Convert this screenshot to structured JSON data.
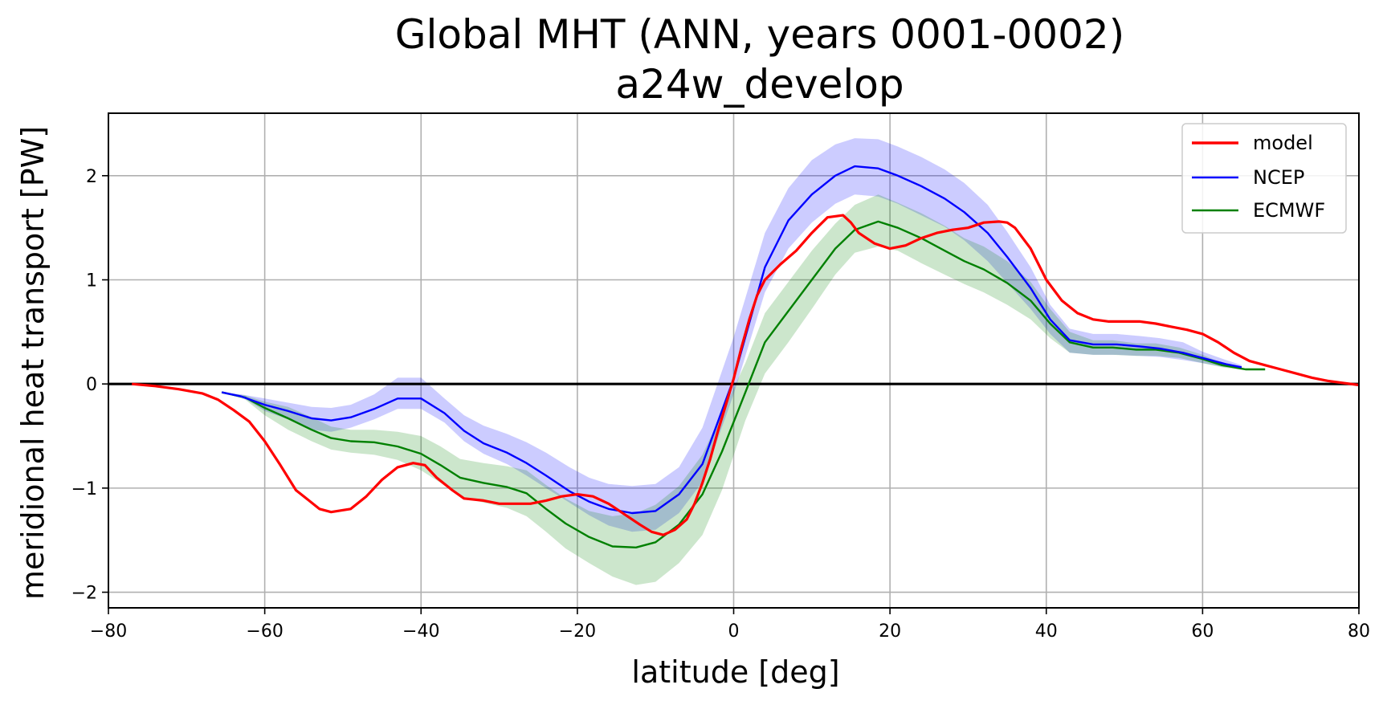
{
  "chart_data": {
    "type": "line",
    "title": "Global MHT (ANN, years 0001-0002)",
    "subtitle": "a24w_develop",
    "xlabel": "latitude [deg]",
    "ylabel": "meridional heat transport [PW]",
    "xlim": [
      -80,
      80
    ],
    "ylim": [
      -2.15,
      2.6
    ],
    "xticks": [
      -80,
      -60,
      -40,
      -20,
      0,
      20,
      40,
      60,
      80
    ],
    "yticks": [
      -2,
      -1,
      0,
      1,
      2
    ],
    "xtick_labels": [
      "−80",
      "−60",
      "−40",
      "−20",
      "0",
      "20",
      "40",
      "60",
      "80"
    ],
    "ytick_labels": [
      "−2",
      "−1",
      "0",
      "1",
      "2"
    ],
    "grid": true,
    "legend_position": "top-right",
    "zero_line": true,
    "series": [
      {
        "name": "model",
        "color": "#ff0000",
        "x": [
          -77,
          -74,
          -71,
          -68,
          -66,
          -64,
          -62,
          -60,
          -58,
          -56,
          -55,
          -53,
          -51.5,
          -49,
          -47,
          -45,
          -43,
          -41,
          -39.5,
          -38,
          -36,
          -34.5,
          -32,
          -30,
          -28,
          -26,
          -24,
          -22,
          -20,
          -18,
          -16,
          -14,
          -12,
          -10.5,
          -9,
          -7.5,
          -6,
          -5,
          -4,
          -3,
          -2,
          -1,
          0,
          1,
          2,
          3,
          4,
          6,
          8,
          10,
          12,
          14,
          15,
          16,
          18,
          20,
          22,
          24,
          26,
          28,
          30,
          32,
          34,
          35,
          36,
          38,
          40,
          42,
          44,
          46,
          48,
          50,
          52,
          54,
          56,
          58,
          60,
          62,
          64,
          66,
          68,
          70,
          72,
          74,
          76,
          78,
          80
        ],
        "y": [
          0,
          -0.02,
          -0.05,
          -0.09,
          -0.15,
          -0.25,
          -0.36,
          -0.55,
          -0.78,
          -1.02,
          -1.08,
          -1.2,
          -1.23,
          -1.2,
          -1.08,
          -0.92,
          -0.8,
          -0.76,
          -0.78,
          -0.9,
          -1.02,
          -1.1,
          -1.12,
          -1.15,
          -1.15,
          -1.15,
          -1.12,
          -1.08,
          -1.06,
          -1.08,
          -1.15,
          -1.25,
          -1.35,
          -1.42,
          -1.45,
          -1.4,
          -1.3,
          -1.15,
          -0.95,
          -0.72,
          -0.45,
          -0.2,
          0.05,
          0.35,
          0.62,
          0.85,
          1.0,
          1.15,
          1.28,
          1.45,
          1.6,
          1.62,
          1.55,
          1.45,
          1.35,
          1.3,
          1.33,
          1.4,
          1.45,
          1.48,
          1.5,
          1.55,
          1.56,
          1.55,
          1.5,
          1.3,
          1.0,
          0.8,
          0.68,
          0.62,
          0.6,
          0.6,
          0.6,
          0.58,
          0.55,
          0.52,
          0.48,
          0.4,
          0.3,
          0.22,
          0.18,
          0.14,
          0.1,
          0.06,
          0.03,
          0.01,
          -0.01
        ]
      },
      {
        "name": "NCEP",
        "color": "#0000ff",
        "x": [
          -65.5,
          -63,
          -60,
          -57,
          -54,
          -51.5,
          -49,
          -46,
          -43,
          -40,
          -37,
          -34.5,
          -32,
          -29,
          -26.5,
          -24,
          -21,
          -18.5,
          -16,
          -13,
          -10,
          -7,
          -4,
          0,
          4,
          7,
          10,
          13,
          15.5,
          18.5,
          21,
          24,
          27,
          29.5,
          32.5,
          35,
          38,
          40.5,
          43,
          46,
          49,
          52,
          54.5,
          57.5,
          60,
          63,
          65
        ],
        "y": [
          -0.08,
          -0.12,
          -0.2,
          -0.26,
          -0.33,
          -0.35,
          -0.32,
          -0.24,
          -0.14,
          -0.14,
          -0.28,
          -0.45,
          -0.57,
          -0.66,
          -0.76,
          -0.88,
          -1.03,
          -1.13,
          -1.2,
          -1.24,
          -1.22,
          -1.06,
          -0.77,
          0.05,
          1.12,
          1.57,
          1.82,
          2.0,
          2.09,
          2.07,
          2.0,
          1.9,
          1.78,
          1.65,
          1.45,
          1.22,
          0.92,
          0.62,
          0.42,
          0.38,
          0.38,
          0.36,
          0.34,
          0.3,
          0.25,
          0.19,
          0.16
        ],
        "band_lower": [
          -0.08,
          -0.12,
          -0.26,
          -0.34,
          -0.44,
          -0.46,
          -0.42,
          -0.34,
          -0.24,
          -0.24,
          -0.37,
          -0.55,
          -0.67,
          -0.77,
          -0.88,
          -1.0,
          -1.14,
          -1.26,
          -1.36,
          -1.42,
          -1.4,
          -1.24,
          -0.94,
          -0.1,
          0.88,
          1.3,
          1.55,
          1.73,
          1.82,
          1.8,
          1.73,
          1.62,
          1.51,
          1.38,
          1.18,
          0.97,
          0.72,
          0.48,
          0.3,
          0.28,
          0.28,
          0.27,
          0.26,
          0.23,
          0.2,
          0.16,
          0.15
        ],
        "band_upper": [
          -0.08,
          -0.1,
          -0.14,
          -0.18,
          -0.22,
          -0.23,
          -0.2,
          -0.1,
          0.06,
          0.06,
          -0.14,
          -0.3,
          -0.4,
          -0.48,
          -0.56,
          -0.66,
          -0.8,
          -0.9,
          -0.96,
          -0.98,
          -0.96,
          -0.8,
          -0.42,
          0.45,
          1.45,
          1.88,
          2.15,
          2.3,
          2.36,
          2.35,
          2.28,
          2.18,
          2.06,
          1.93,
          1.72,
          1.46,
          1.12,
          0.76,
          0.53,
          0.48,
          0.48,
          0.46,
          0.44,
          0.4,
          0.31,
          0.23,
          0.18
        ]
      },
      {
        "name": "ECMWF",
        "color": "#008000",
        "x": [
          -65.5,
          -62.5,
          -60,
          -57,
          -54,
          -51.5,
          -49,
          -46,
          -43,
          -40,
          -37.5,
          -35,
          -32,
          -29,
          -26.5,
          -24,
          -21.5,
          -18.5,
          -15.5,
          -12.5,
          -10,
          -7,
          -4,
          -1.5,
          1.5,
          4,
          7,
          10,
          13,
          15.5,
          18.5,
          21,
          24,
          27,
          29.5,
          32,
          35,
          38,
          40.5,
          43,
          46,
          48.5,
          51.5,
          54,
          57,
          60,
          62.5,
          65.5,
          68
        ],
        "y": [
          -0.08,
          -0.13,
          -0.23,
          -0.33,
          -0.44,
          -0.52,
          -0.55,
          -0.56,
          -0.6,
          -0.67,
          -0.78,
          -0.9,
          -0.95,
          -0.99,
          -1.05,
          -1.2,
          -1.34,
          -1.47,
          -1.56,
          -1.57,
          -1.52,
          -1.35,
          -1.06,
          -0.65,
          -0.08,
          0.4,
          0.7,
          1.0,
          1.3,
          1.48,
          1.56,
          1.5,
          1.4,
          1.28,
          1.18,
          1.1,
          0.97,
          0.8,
          0.58,
          0.4,
          0.35,
          0.35,
          0.33,
          0.33,
          0.3,
          0.24,
          0.18,
          0.14,
          0.14
        ],
        "band_lower": [
          -0.08,
          -0.15,
          -0.3,
          -0.44,
          -0.55,
          -0.63,
          -0.66,
          -0.68,
          -0.73,
          -0.83,
          -0.95,
          -1.08,
          -1.14,
          -1.19,
          -1.27,
          -1.42,
          -1.58,
          -1.72,
          -1.85,
          -1.93,
          -1.9,
          -1.72,
          -1.45,
          -1.02,
          -0.35,
          0.1,
          0.4,
          0.72,
          1.05,
          1.26,
          1.32,
          1.28,
          1.16,
          1.05,
          0.96,
          0.88,
          0.76,
          0.62,
          0.44,
          0.3,
          0.28,
          0.28,
          0.27,
          0.27,
          0.25,
          0.2,
          0.16,
          0.13,
          0.13
        ],
        "band_upper": [
          -0.08,
          -0.11,
          -0.17,
          -0.22,
          -0.32,
          -0.41,
          -0.44,
          -0.44,
          -0.46,
          -0.5,
          -0.6,
          -0.72,
          -0.76,
          -0.79,
          -0.83,
          -0.97,
          -1.1,
          -1.22,
          -1.27,
          -1.24,
          -1.16,
          -0.98,
          -0.68,
          -0.28,
          0.2,
          0.68,
          0.98,
          1.28,
          1.54,
          1.72,
          1.82,
          1.74,
          1.64,
          1.52,
          1.4,
          1.32,
          1.18,
          0.98,
          0.72,
          0.5,
          0.42,
          0.42,
          0.39,
          0.39,
          0.35,
          0.28,
          0.2,
          0.15,
          0.15
        ]
      }
    ]
  }
}
